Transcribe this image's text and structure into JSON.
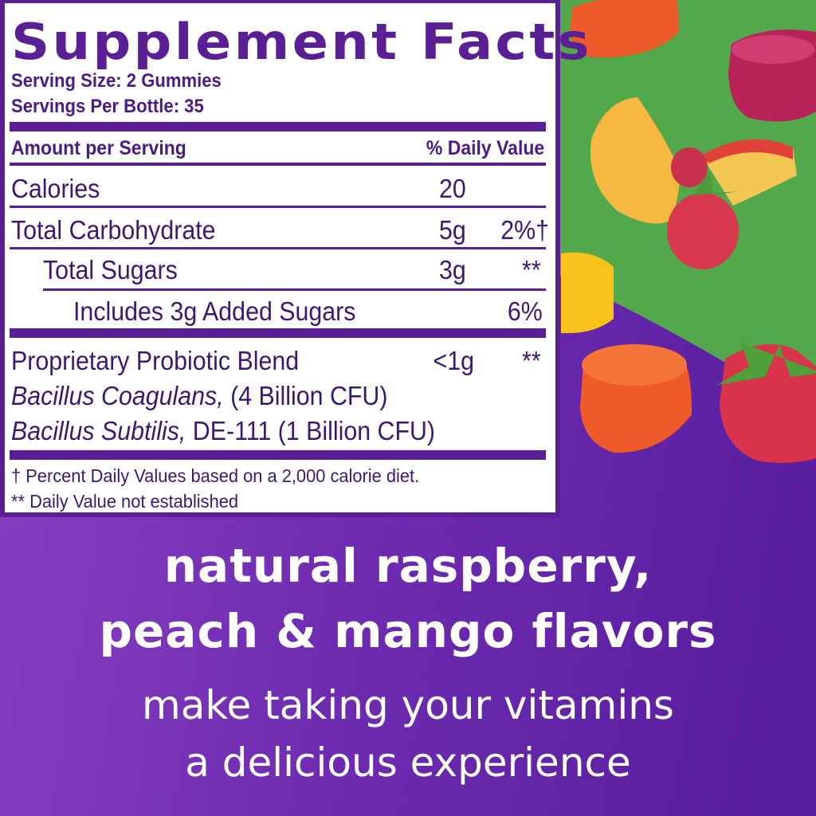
{
  "label": {
    "title": "Supplement Facts",
    "serving_size": "Serving Size: 2 Gummies",
    "servings_per": "Servings Per Bottle: 35",
    "header_left": "Amount per Serving",
    "header_right": "% Daily Value",
    "rows": [
      {
        "name": "Calories",
        "amount": "20",
        "dv": ""
      },
      {
        "name": "Total Carbohydrate",
        "amount": "5g",
        "dv": "2%†"
      },
      {
        "name": "Total Sugars",
        "amount": "3g",
        "dv": "**"
      },
      {
        "name": "Includes 3g Added Sugars",
        "amount": "",
        "dv": "6%"
      },
      {
        "name": "Proprietary Probiotic Blend",
        "amount": "<1g",
        "dv": "**"
      }
    ],
    "strain1_italic": "Bacillus Coagulans,",
    "strain1_rest": " (4 Billion CFU)",
    "strain2_italic": "Bacillus Subtilis,",
    "strain2_rest": " DE-111 (1 Billion CFU)",
    "footnote1": "† Percent Daily Values based on a 2,000 calorie diet.",
    "footnote2": "** Daily Value not established"
  },
  "tagline": {
    "line1": "natural raspberry,",
    "line2": "peach & mango flavors",
    "line3": "make taking your vitamins",
    "line4": "a delicious experience"
  },
  "colors": {
    "purple": "#5a1f94",
    "green": "#4fa84a",
    "white": "#ffffff"
  }
}
